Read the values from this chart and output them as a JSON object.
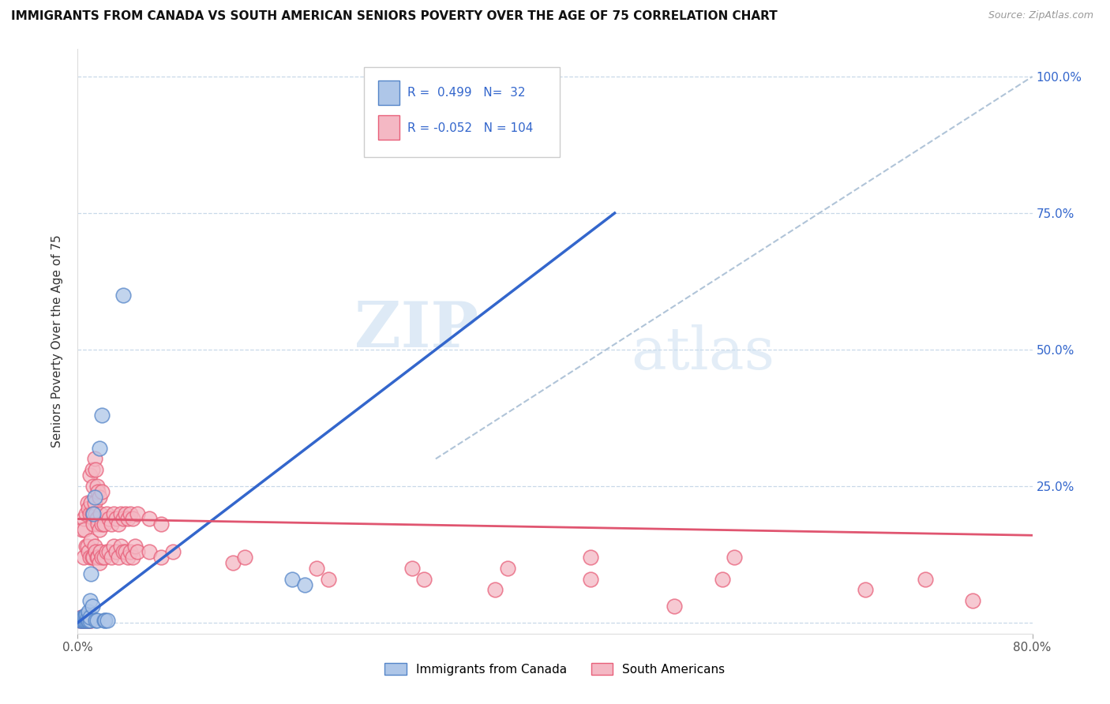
{
  "title": "IMMIGRANTS FROM CANADA VS SOUTH AMERICAN SENIORS POVERTY OVER THE AGE OF 75 CORRELATION CHART",
  "source": "Source: ZipAtlas.com",
  "ylabel": "Seniors Poverty Over the Age of 75",
  "xlim": [
    0.0,
    0.8
  ],
  "ylim": [
    -0.02,
    1.05
  ],
  "x_ticks": [
    0.0,
    0.8
  ],
  "x_tick_labels": [
    "0.0%",
    "80.0%"
  ],
  "y_ticks": [
    0.0,
    0.25,
    0.5,
    0.75,
    1.0
  ],
  "y_tick_labels_right": [
    "",
    "25.0%",
    "50.0%",
    "75.0%",
    "100.0%"
  ],
  "canada_R": 0.499,
  "canada_N": 32,
  "south_R": -0.052,
  "south_N": 104,
  "canada_color": "#aec6e8",
  "south_color": "#f4b8c4",
  "canada_edge_color": "#5585c8",
  "south_edge_color": "#e8607a",
  "canada_line_color": "#3366cc",
  "south_line_color": "#e05570",
  "diagonal_line_color": "#b0c4d8",
  "watermark_zip": "ZIP",
  "watermark_atlas": "atlas",
  "background_color": "#ffffff",
  "grid_color": "#c8d8e8",
  "legend_text_color": "#3366cc",
  "canada_points": [
    [
      0.002,
      0.005
    ],
    [
      0.003,
      0.005
    ],
    [
      0.004,
      0.005
    ],
    [
      0.004,
      0.01
    ],
    [
      0.005,
      0.005
    ],
    [
      0.005,
      0.01
    ],
    [
      0.006,
      0.005
    ],
    [
      0.006,
      0.01
    ],
    [
      0.007,
      0.005
    ],
    [
      0.007,
      0.01
    ],
    [
      0.007,
      0.015
    ],
    [
      0.008,
      0.005
    ],
    [
      0.008,
      0.01
    ],
    [
      0.009,
      0.005
    ],
    [
      0.009,
      0.02
    ],
    [
      0.01,
      0.005
    ],
    [
      0.01,
      0.01
    ],
    [
      0.01,
      0.04
    ],
    [
      0.011,
      0.09
    ],
    [
      0.012,
      0.03
    ],
    [
      0.013,
      0.2
    ],
    [
      0.014,
      0.23
    ],
    [
      0.015,
      0.005
    ],
    [
      0.016,
      0.005
    ],
    [
      0.018,
      0.32
    ],
    [
      0.02,
      0.38
    ],
    [
      0.022,
      0.005
    ],
    [
      0.023,
      0.005
    ],
    [
      0.025,
      0.005
    ],
    [
      0.038,
      0.6
    ],
    [
      0.18,
      0.08
    ],
    [
      0.19,
      0.07
    ]
  ],
  "south_points": [
    [
      0.002,
      0.005
    ],
    [
      0.003,
      0.005
    ],
    [
      0.003,
      0.01
    ],
    [
      0.004,
      0.005
    ],
    [
      0.004,
      0.01
    ],
    [
      0.004,
      0.17
    ],
    [
      0.005,
      0.005
    ],
    [
      0.005,
      0.01
    ],
    [
      0.005,
      0.12
    ],
    [
      0.005,
      0.19
    ],
    [
      0.006,
      0.005
    ],
    [
      0.006,
      0.01
    ],
    [
      0.006,
      0.17
    ],
    [
      0.007,
      0.005
    ],
    [
      0.007,
      0.01
    ],
    [
      0.007,
      0.14
    ],
    [
      0.007,
      0.2
    ],
    [
      0.008,
      0.005
    ],
    [
      0.008,
      0.14
    ],
    [
      0.008,
      0.22
    ],
    [
      0.009,
      0.005
    ],
    [
      0.009,
      0.13
    ],
    [
      0.009,
      0.21
    ],
    [
      0.01,
      0.005
    ],
    [
      0.01,
      0.12
    ],
    [
      0.01,
      0.2
    ],
    [
      0.01,
      0.27
    ],
    [
      0.011,
      0.005
    ],
    [
      0.011,
      0.15
    ],
    [
      0.011,
      0.22
    ],
    [
      0.012,
      0.12
    ],
    [
      0.012,
      0.2
    ],
    [
      0.012,
      0.28
    ],
    [
      0.013,
      0.12
    ],
    [
      0.013,
      0.18
    ],
    [
      0.013,
      0.25
    ],
    [
      0.014,
      0.14
    ],
    [
      0.014,
      0.22
    ],
    [
      0.014,
      0.3
    ],
    [
      0.015,
      0.13
    ],
    [
      0.015,
      0.2
    ],
    [
      0.015,
      0.28
    ],
    [
      0.016,
      0.12
    ],
    [
      0.016,
      0.19
    ],
    [
      0.016,
      0.25
    ],
    [
      0.017,
      0.12
    ],
    [
      0.017,
      0.18
    ],
    [
      0.017,
      0.24
    ],
    [
      0.018,
      0.11
    ],
    [
      0.018,
      0.17
    ],
    [
      0.018,
      0.23
    ],
    [
      0.019,
      0.13
    ],
    [
      0.019,
      0.2
    ],
    [
      0.02,
      0.12
    ],
    [
      0.02,
      0.18
    ],
    [
      0.02,
      0.24
    ],
    [
      0.022,
      0.12
    ],
    [
      0.022,
      0.18
    ],
    [
      0.024,
      0.13
    ],
    [
      0.024,
      0.2
    ],
    [
      0.026,
      0.13
    ],
    [
      0.026,
      0.19
    ],
    [
      0.028,
      0.12
    ],
    [
      0.028,
      0.18
    ],
    [
      0.03,
      0.14
    ],
    [
      0.03,
      0.2
    ],
    [
      0.032,
      0.13
    ],
    [
      0.032,
      0.19
    ],
    [
      0.034,
      0.12
    ],
    [
      0.034,
      0.18
    ],
    [
      0.036,
      0.14
    ],
    [
      0.036,
      0.2
    ],
    [
      0.038,
      0.13
    ],
    [
      0.038,
      0.19
    ],
    [
      0.04,
      0.13
    ],
    [
      0.04,
      0.2
    ],
    [
      0.042,
      0.12
    ],
    [
      0.042,
      0.19
    ],
    [
      0.044,
      0.13
    ],
    [
      0.044,
      0.2
    ],
    [
      0.046,
      0.12
    ],
    [
      0.046,
      0.19
    ],
    [
      0.048,
      0.14
    ],
    [
      0.05,
      0.13
    ],
    [
      0.05,
      0.2
    ],
    [
      0.06,
      0.13
    ],
    [
      0.06,
      0.19
    ],
    [
      0.07,
      0.12
    ],
    [
      0.07,
      0.18
    ],
    [
      0.08,
      0.13
    ],
    [
      0.13,
      0.11
    ],
    [
      0.14,
      0.12
    ],
    [
      0.2,
      0.1
    ],
    [
      0.21,
      0.08
    ],
    [
      0.28,
      0.1
    ],
    [
      0.29,
      0.08
    ],
    [
      0.35,
      0.06
    ],
    [
      0.36,
      0.1
    ],
    [
      0.43,
      0.08
    ],
    [
      0.43,
      0.12
    ],
    [
      0.5,
      0.03
    ],
    [
      0.54,
      0.08
    ],
    [
      0.55,
      0.12
    ],
    [
      0.66,
      0.06
    ],
    [
      0.71,
      0.08
    ],
    [
      0.75,
      0.04
    ]
  ],
  "canada_line_x": [
    0.0,
    0.45
  ],
  "canada_line_y": [
    0.0,
    0.75
  ],
  "south_line_x": [
    0.0,
    0.8
  ],
  "south_line_y": [
    0.19,
    0.16
  ],
  "diag_line_x": [
    0.3,
    0.8
  ],
  "diag_line_y": [
    0.3,
    1.0
  ]
}
